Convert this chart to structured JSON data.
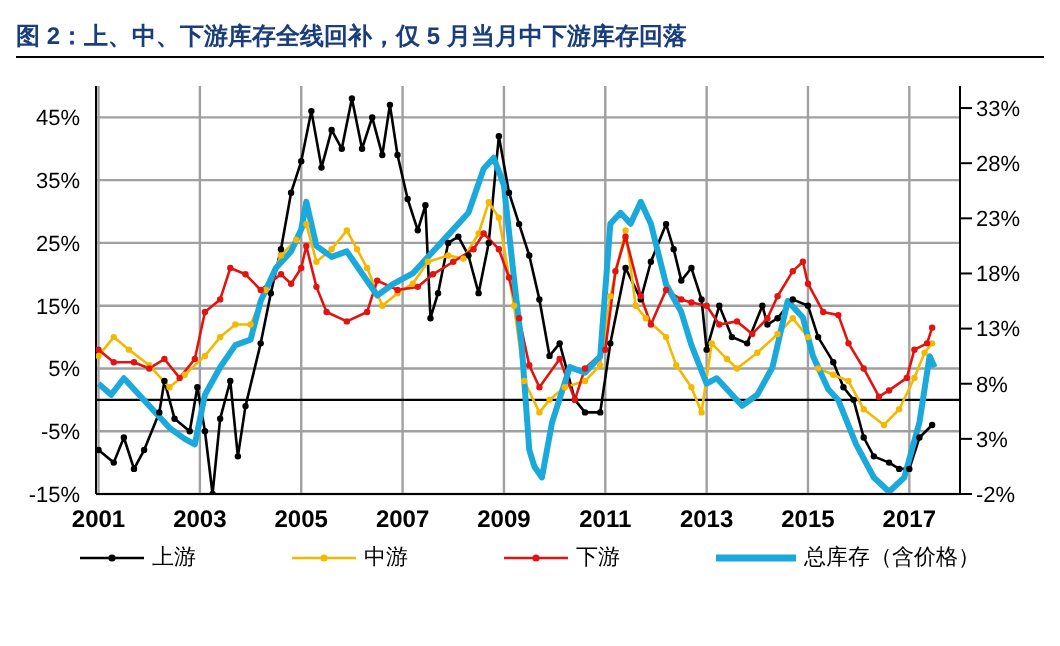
{
  "chart_data": {
    "type": "line",
    "title": "图 2：上、中、下游库存全线回补，仅 5 月当月中下游库存回落",
    "xlim": [
      2000.95,
      2018
    ],
    "xticks": [
      2001,
      2003,
      2005,
      2007,
      2009,
      2011,
      2013,
      2015,
      2017
    ],
    "ylim": [
      -15,
      50
    ],
    "yticks": [
      {
        "value": -15,
        "label": "-15%"
      },
      {
        "value": -5,
        "label": "-5%"
      },
      {
        "value": 5,
        "label": "5%"
      },
      {
        "value": 15,
        "label": "15%"
      },
      {
        "value": 25,
        "label": "25%"
      },
      {
        "value": 35,
        "label": "35%"
      },
      {
        "value": 45,
        "label": "45%"
      }
    ],
    "y2lim": [
      -2,
      35
    ],
    "y2ticks": [
      {
        "value": -2,
        "label": "-2%"
      },
      {
        "value": 3,
        "label": "3%"
      },
      {
        "value": 8,
        "label": "8%"
      },
      {
        "value": 13,
        "label": "13%"
      },
      {
        "value": 18,
        "label": "18%"
      },
      {
        "value": 23,
        "label": "23%"
      },
      {
        "value": 28,
        "label": "28%"
      },
      {
        "value": 33,
        "label": "33%"
      }
    ],
    "grid": true,
    "legend": "bottom",
    "line_style": "solid",
    "ref_lines": [
      {
        "axis": "y",
        "value": 0,
        "color": "#000000"
      }
    ],
    "series": [
      {
        "name": "上游",
        "color": "#000000",
        "marker": "circle",
        "x": [
          2001.0,
          2001.3,
          2001.5,
          2001.7,
          2001.9,
          2002.2,
          2002.3,
          2002.5,
          2002.8,
          2002.95,
          2003.1,
          2003.25,
          2003.4,
          2003.6,
          2003.75,
          2003.9,
          2004.2,
          2004.4,
          2004.6,
          2004.8,
          2005.0,
          2005.2,
          2005.4,
          2005.6,
          2005.8,
          2006.0,
          2006.2,
          2006.4,
          2006.6,
          2006.75,
          2006.9,
          2007.1,
          2007.3,
          2007.45,
          2007.55,
          2007.7,
          2007.9,
          2008.1,
          2008.3,
          2008.5,
          2008.7,
          2008.9,
          2009.1,
          2009.3,
          2009.5,
          2009.7,
          2009.9,
          2010.1,
          2010.4,
          2010.6,
          2010.9,
          2011.1,
          2011.4,
          2011.7,
          2011.9,
          2012.2,
          2012.35,
          2012.5,
          2012.7,
          2012.9,
          2013.0,
          2013.25,
          2013.5,
          2013.8,
          2014.1,
          2014.2,
          2014.4,
          2014.7,
          2015.0,
          2015.2,
          2015.5,
          2015.7,
          2015.9,
          2016.1,
          2016.3,
          2016.6,
          2016.8,
          2017.0,
          2017.2,
          2017.45
        ],
        "values": [
          -8,
          -10,
          -6,
          -11,
          -8,
          -2,
          3,
          -3,
          -5,
          2,
          -5,
          -15,
          -3,
          3,
          -9,
          -1,
          9,
          17,
          24,
          33,
          38,
          46,
          37,
          43,
          40,
          48,
          40,
          45,
          39,
          47,
          39,
          32,
          27,
          31,
          13,
          17,
          25,
          26,
          23,
          17,
          25,
          42,
          33,
          28,
          23,
          16,
          7,
          9,
          0,
          -2,
          -2,
          9,
          21,
          16,
          22,
          28,
          24,
          19,
          21,
          16,
          8,
          15,
          10,
          9,
          15,
          12,
          13,
          16,
          15,
          10,
          6,
          2,
          0,
          -6,
          -9,
          -10,
          -11,
          -11,
          -6,
          -4
        ]
      },
      {
        "name": "中游",
        "color": "#f5b800",
        "marker": "circle",
        "x": [
          2001.0,
          2001.3,
          2001.6,
          2002.0,
          2002.4,
          2002.7,
          2003.1,
          2003.4,
          2003.7,
          2004.0,
          2004.3,
          2004.6,
          2004.9,
          2005.1,
          2005.3,
          2005.6,
          2005.9,
          2006.1,
          2006.3,
          2006.6,
          2006.9,
          2007.2,
          2007.5,
          2007.9,
          2008.2,
          2008.5,
          2008.7,
          2008.9,
          2009.2,
          2009.4,
          2009.7,
          2009.9,
          2010.2,
          2010.6,
          2010.9,
          2011.1,
          2011.4,
          2011.6,
          2011.8,
          2012.2,
          2012.4,
          2012.7,
          2012.9,
          2013.1,
          2013.4,
          2013.6,
          2014.0,
          2014.4,
          2014.7,
          2015.0,
          2015.2,
          2015.5,
          2015.8,
          2016.1,
          2016.5,
          2016.8,
          2017.1,
          2017.3,
          2017.45
        ],
        "values": [
          7,
          10,
          8,
          5.5,
          2,
          4,
          7,
          10,
          12,
          12,
          17.5,
          23,
          25.5,
          28,
          22,
          24,
          27,
          24,
          21,
          15,
          17,
          18.5,
          22,
          23,
          22.5,
          26.5,
          31.5,
          29,
          15,
          3,
          -2,
          0,
          2,
          3,
          5.5,
          16.5,
          27,
          15,
          13,
          10,
          5.5,
          2,
          -2,
          9,
          6.5,
          5,
          7.5,
          10.5,
          13,
          10,
          5,
          4,
          3,
          -1.5,
          -4,
          -1.5,
          3.5,
          7.5,
          9
        ]
      },
      {
        "name": "下游",
        "color": "#e3130f",
        "marker": "circle",
        "x": [
          2001.0,
          2001.3,
          2001.7,
          2002.0,
          2002.3,
          2002.6,
          2002.9,
          2003.1,
          2003.4,
          2003.6,
          2003.9,
          2004.2,
          2004.6,
          2004.8,
          2005.0,
          2005.1,
          2005.3,
          2005.5,
          2005.9,
          2006.3,
          2006.5,
          2006.9,
          2007.3,
          2007.6,
          2008.0,
          2008.4,
          2008.6,
          2008.9,
          2009.1,
          2009.3,
          2009.5,
          2009.7,
          2010.1,
          2010.4,
          2010.6,
          2011.0,
          2011.2,
          2011.4,
          2011.7,
          2011.9,
          2012.2,
          2012.5,
          2012.7,
          2013.0,
          2013.25,
          2013.6,
          2013.9,
          2014.2,
          2014.4,
          2014.7,
          2014.9,
          2015.0,
          2015.3,
          2015.6,
          2015.8,
          2016.1,
          2016.4,
          2016.6,
          2016.95,
          2017.1,
          2017.35,
          2017.45
        ],
        "values": [
          8,
          6,
          6,
          5,
          6.5,
          3.5,
          6.5,
          14,
          16,
          21,
          20,
          17.5,
          20,
          18.5,
          21,
          24.5,
          18,
          14,
          12.5,
          14,
          19,
          17.5,
          18,
          20,
          22,
          24,
          26.5,
          24,
          19.5,
          13,
          5.5,
          2,
          6.5,
          0,
          5,
          8,
          20.5,
          26,
          16.5,
          12,
          17.5,
          16,
          15.5,
          15,
          12,
          12.5,
          10.5,
          13,
          16.5,
          20.5,
          22,
          18.5,
          14,
          13.5,
          9,
          5,
          0.5,
          1.5,
          3.5,
          8,
          9,
          11.5
        ]
      },
      {
        "name": "总库存（含价格）",
        "color": "#1ba9dc",
        "axis": "y2",
        "marker": "none",
        "x": [
          2001.0,
          2001.25,
          2001.5,
          2001.8,
          2002.1,
          2002.4,
          2002.7,
          2002.9,
          2003.1,
          2003.4,
          2003.7,
          2004.0,
          2004.2,
          2004.5,
          2004.8,
          2005.0,
          2005.1,
          2005.3,
          2005.6,
          2005.9,
          2006.2,
          2006.5,
          2006.8,
          2007.2,
          2007.6,
          2008.0,
          2008.3,
          2008.6,
          2008.8,
          2009.0,
          2009.2,
          2009.35,
          2009.5,
          2009.6,
          2009.75,
          2009.95,
          2010.3,
          2010.6,
          2010.9,
          2011.1,
          2011.3,
          2011.5,
          2011.7,
          2011.9,
          2012.2,
          2012.5,
          2012.7,
          2013.0,
          2013.2,
          2013.5,
          2013.7,
          2014.0,
          2014.3,
          2014.6,
          2014.9,
          2015.1,
          2015.4,
          2015.6,
          2015.95,
          2016.3,
          2016.6,
          2016.9,
          2017.2,
          2017.4,
          2017.5
        ],
        "values": [
          8,
          7,
          8.5,
          7,
          5.5,
          4,
          3,
          2.5,
          7,
          9.5,
          11.5,
          12,
          15.5,
          18.5,
          20,
          22,
          24.5,
          20.5,
          19.5,
          20,
          18,
          16,
          17,
          18,
          20,
          22,
          23.5,
          27.5,
          28.5,
          26,
          17.5,
          11.5,
          2,
          0.5,
          -0.5,
          4.5,
          9.5,
          9,
          10.5,
          22.5,
          23.5,
          22.5,
          24.5,
          22.5,
          17,
          14.5,
          11.5,
          8,
          8.5,
          7,
          6,
          7,
          9.5,
          15.5,
          14,
          10.5,
          7.5,
          6.5,
          2.5,
          -0.5,
          -1.8,
          -0.5,
          4.5,
          10.5,
          9.5
        ]
      }
    ]
  }
}
